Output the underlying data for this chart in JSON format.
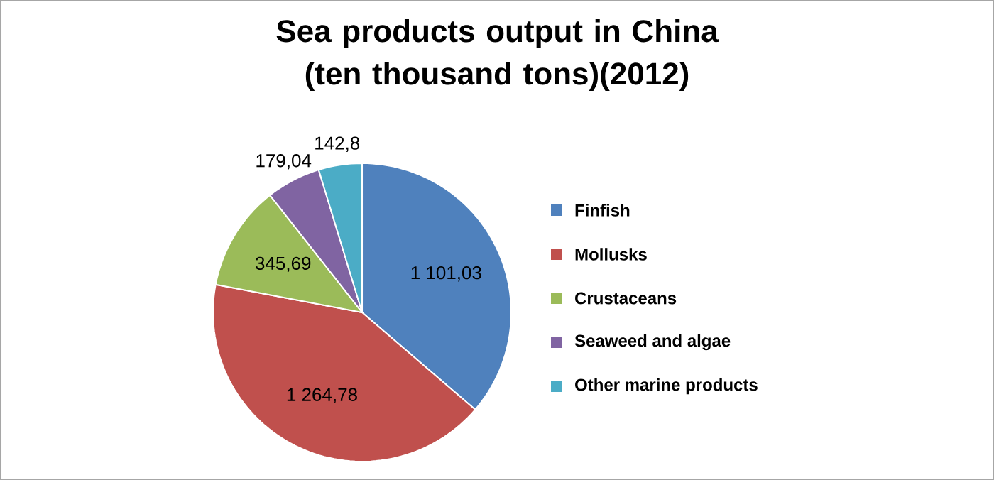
{
  "chart_data": {
    "type": "pie",
    "title": "Sea products output in China (ten thousand tons)(2012)",
    "categories": [
      "Finfish",
      "Mollusks",
      "Crustaceans",
      "Seaweed and algae",
      "Other marine products"
    ],
    "values": [
      1101.03,
      1264.78,
      345.69,
      179.04,
      142.8
    ],
    "value_labels": [
      "1 101,03",
      "1 264,78",
      "345,69",
      "179,04",
      "142,8"
    ],
    "colors": [
      "#4f81bd",
      "#c0504d",
      "#9bbb59",
      "#8064a2",
      "#4bacc6"
    ],
    "legend": "right"
  }
}
